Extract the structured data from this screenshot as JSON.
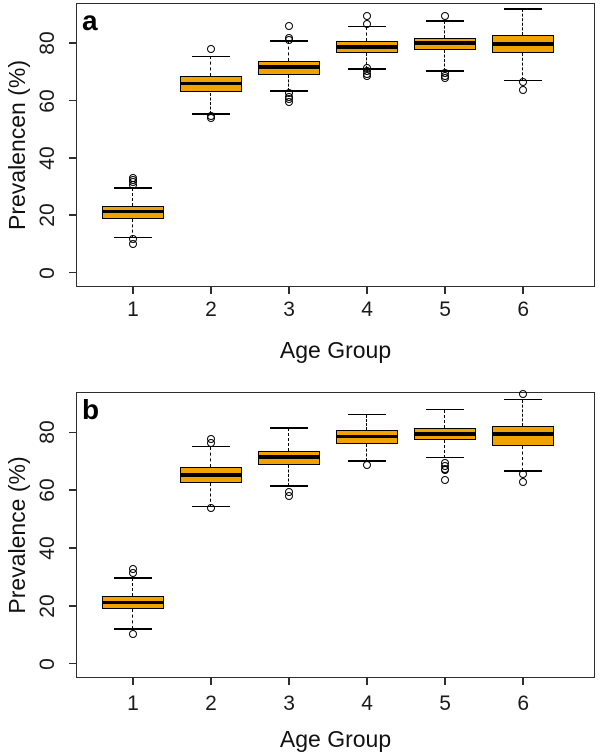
{
  "figure": {
    "background": "#ffffff",
    "box_fill": "#F0A202",
    "line_color": "#000000",
    "axis_color": "#2e2e2e"
  },
  "chart_data": [
    {
      "type": "boxplot",
      "panel_label": "a",
      "xlabel": "Age Group",
      "ylabel": "Prevalencen (%)",
      "categories": [
        "1",
        "2",
        "3",
        "4",
        "5",
        "6"
      ],
      "yticks": [
        0,
        20,
        40,
        60,
        80
      ],
      "ylim": [
        -5,
        94
      ],
      "xlim": [
        0.27,
        6.92
      ],
      "grid": false,
      "groups": [
        {
          "whisker_low": 12.2,
          "q1": 18.8,
          "median": 21.3,
          "q3": 23.4,
          "whisker_high": 29.5,
          "outliers_high": [
            30.7,
            31.5,
            32.3,
            33.1
          ],
          "outliers_low": [
            11.7,
            10.0
          ]
        },
        {
          "whisker_low": 55.3,
          "q1": 62.8,
          "median": 65.9,
          "q3": 68.6,
          "whisker_high": 75.4,
          "outliers_high": [
            77.8
          ],
          "outliers_low": [
            54.7,
            53.8
          ]
        },
        {
          "whisker_low": 63.4,
          "q1": 68.9,
          "median": 71.7,
          "q3": 73.8,
          "whisker_high": 80.7,
          "outliers_high": [
            86.0,
            81.9,
            81.0
          ],
          "outliers_low": [
            62.5,
            61.4,
            60.4,
            59.5
          ]
        },
        {
          "whisker_low": 70.9,
          "q1": 76.5,
          "median": 78.6,
          "q3": 80.7,
          "whisker_high": 85.8,
          "outliers_high": [
            89.3,
            86.6
          ],
          "outliers_low": [
            71.4,
            70.4,
            69.4,
            68.7
          ]
        },
        {
          "whisker_low": 70.3,
          "q1": 77.7,
          "median": 80.0,
          "q3": 81.9,
          "whisker_high": 87.7,
          "outliers_high": [
            89.6
          ],
          "outliers_low": [
            69.7,
            68.7,
            67.7
          ]
        },
        {
          "whisker_low": 67.0,
          "q1": 76.5,
          "median": 79.8,
          "q3": 82.7,
          "whisker_high": 92.0,
          "outliers_high": [],
          "outliers_low": [
            66.5,
            63.8
          ]
        }
      ]
    },
    {
      "type": "boxplot",
      "panel_label": "b",
      "xlabel": "Age Group",
      "ylabel": "Prevalence (%)",
      "categories": [
        "1",
        "2",
        "3",
        "4",
        "5",
        "6"
      ],
      "yticks": [
        0,
        20,
        40,
        60,
        80
      ],
      "ylim": [
        -5,
        94
      ],
      "xlim": [
        0.27,
        6.92
      ],
      "grid": false,
      "groups": [
        {
          "whisker_low": 12.0,
          "q1": 18.9,
          "median": 21.2,
          "q3": 23.5,
          "whisker_high": 29.6,
          "outliers_high": [
            31.5,
            32.7
          ],
          "outliers_low": [
            10.4
          ]
        },
        {
          "whisker_low": 54.3,
          "q1": 62.4,
          "median": 65.3,
          "q3": 68.2,
          "whisker_high": 75.1,
          "outliers_high": [
            76.2,
            77.6
          ],
          "outliers_low": [
            54.0
          ]
        },
        {
          "whisker_low": 61.5,
          "q1": 68.8,
          "median": 71.4,
          "q3": 73.7,
          "whisker_high": 81.5,
          "outliers_high": [],
          "outliers_low": [
            59.4,
            58.1
          ]
        },
        {
          "whisker_low": 70.2,
          "q1": 76.0,
          "median": 78.6,
          "q3": 80.9,
          "whisker_high": 86.2,
          "outliers_high": [],
          "outliers_low": [
            68.9
          ]
        },
        {
          "whisker_low": 71.3,
          "q1": 77.5,
          "median": 79.4,
          "q3": 81.7,
          "whisker_high": 87.9,
          "outliers_high": [],
          "outliers_low": [
            69.5,
            68.5,
            67.5,
            66.9,
            63.5
          ]
        },
        {
          "whisker_low": 66.7,
          "q1": 75.4,
          "median": 79.4,
          "q3": 82.1,
          "whisker_high": 91.4,
          "outliers_high": [
            93.4
          ],
          "outliers_low": [
            65.5,
            62.8
          ]
        }
      ]
    }
  ]
}
